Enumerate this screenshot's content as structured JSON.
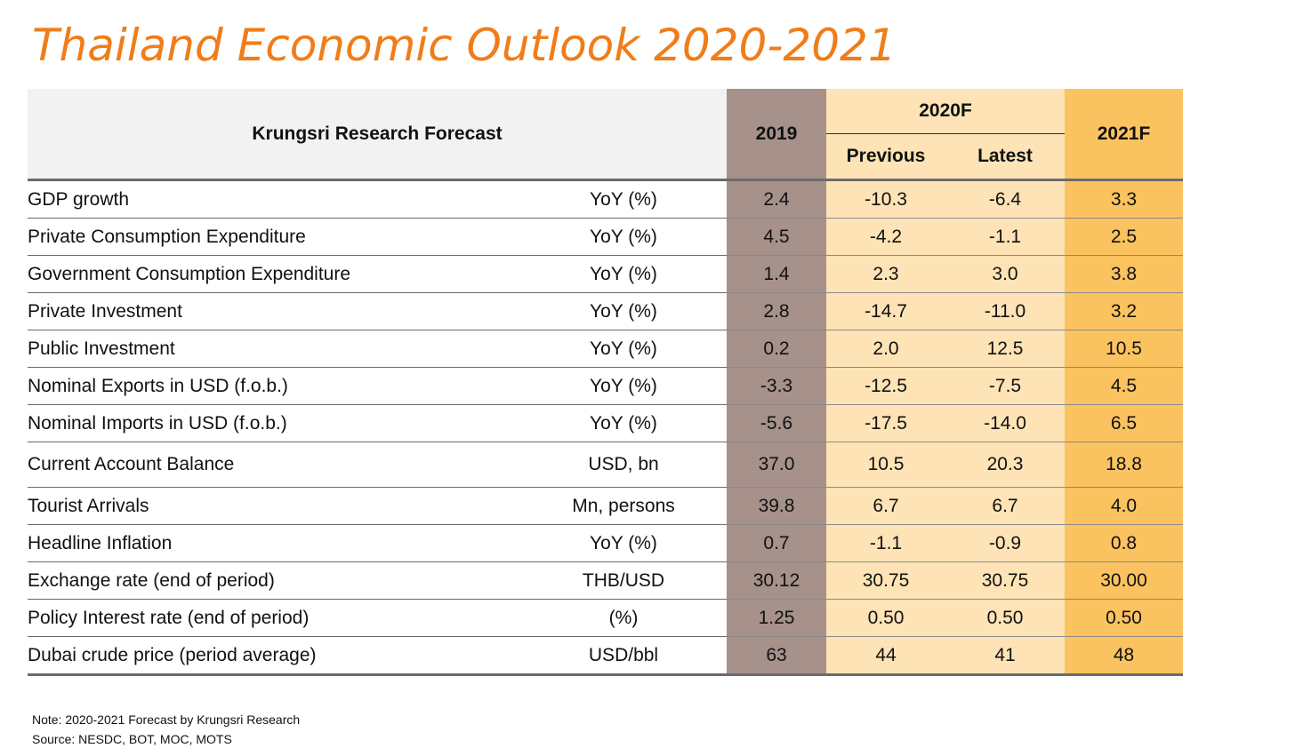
{
  "title": "Thailand Economic Outlook 2020-2021",
  "table": {
    "header": {
      "label": "Krungsri Research Forecast",
      "y2019": "2019",
      "y2020": "2020F",
      "previous": "Previous",
      "latest": "Latest",
      "y2021": "2021F"
    },
    "rows": [
      {
        "name": "GDP growth",
        "unit": "YoY (%)",
        "v2019": "2.4",
        "prev": "-10.3",
        "latest": "-6.4",
        "v2021": "3.3"
      },
      {
        "name": "Private Consumption Expenditure",
        "unit": "YoY (%)",
        "v2019": "4.5",
        "prev": "-4.2",
        "latest": "-1.1",
        "v2021": "2.5"
      },
      {
        "name": "Government Consumption Expenditure",
        "unit": "YoY (%)",
        "v2019": "1.4",
        "prev": "2.3",
        "latest": "3.0",
        "v2021": "3.8"
      },
      {
        "name": "Private Investment",
        "unit": "YoY (%)",
        "v2019": "2.8",
        "prev": "-14.7",
        "latest": "-11.0",
        "v2021": "3.2"
      },
      {
        "name": "Public Investment",
        "unit": "YoY (%)",
        "v2019": "0.2",
        "prev": "2.0",
        "latest": "12.5",
        "v2021": "10.5"
      },
      {
        "name": "Nominal Exports in USD (f.o.b.)",
        "unit": "YoY (%)",
        "v2019": "-3.3",
        "prev": "-12.5",
        "latest": "-7.5",
        "v2021": "4.5"
      },
      {
        "name": "Nominal Imports in USD (f.o.b.)",
        "unit": "YoY (%)",
        "v2019": "-5.6",
        "prev": "-17.5",
        "latest": "-14.0",
        "v2021": "6.5"
      },
      {
        "name": "Current Account Balance",
        "unit": "USD, bn",
        "v2019": "37.0",
        "prev": "10.5",
        "latest": "20.3",
        "v2021": "18.8"
      },
      {
        "name": "Tourist Arrivals",
        "unit": "Mn, persons",
        "v2019": "39.8",
        "prev": "6.7",
        "latest": "6.7",
        "v2021": "4.0"
      },
      {
        "name": "Headline Inflation",
        "unit": "YoY (%)",
        "v2019": "0.7",
        "prev": "-1.1",
        "latest": "-0.9",
        "v2021": "0.8"
      },
      {
        "name": "Exchange rate (end of period)",
        "unit": "THB/USD",
        "v2019": "30.12",
        "prev": "30.75",
        "latest": "30.75",
        "v2021": "30.00"
      },
      {
        "name": "Policy Interest rate (end of period)",
        "unit": "(%)",
        "v2019": "1.25",
        "prev": "0.50",
        "latest": "0.50",
        "v2021": "0.50"
      },
      {
        "name": "Dubai crude price (period average)",
        "unit": "USD/bbl",
        "v2019": "63",
        "prev": "44",
        "latest": "41",
        "v2021": "48"
      }
    ]
  },
  "notes": {
    "note": "Note: 2020-2021 Forecast by Krungsri Research",
    "source": "Source: NESDC, BOT, MOC, MOTS"
  },
  "colors": {
    "title": "#f07d19",
    "col_2019": "#a6918b",
    "col_2020": "#fde3b6",
    "col_2021": "#fbc260",
    "header_bg": "#f2f2f2"
  }
}
